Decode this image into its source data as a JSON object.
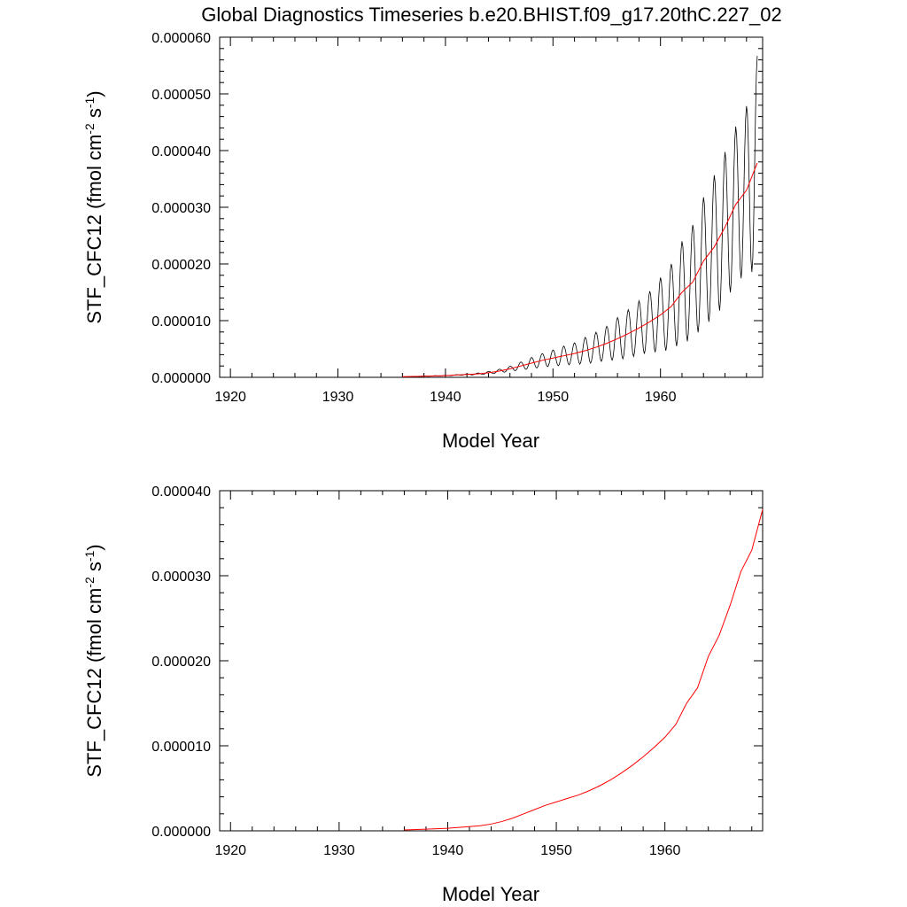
{
  "title": "Global Diagnostics Timeseries b.e20.BHIST.f09_g17.20thC.227_02",
  "chart_data": [
    {
      "type": "line",
      "xlabel": "Model Year",
      "ylabel_main": "STF_CFC12 (fmol cm",
      "ylabel_sup1": "-2",
      "ylabel_mid": " s",
      "ylabel_sup2": "-1",
      "ylabel_end": ")",
      "xlim": [
        1919,
        1969.5
      ],
      "ylim": [
        0,
        6e-05
      ],
      "x_ticks": [
        1920,
        1930,
        1940,
        1950,
        1960
      ],
      "x_tick_labels": [
        "1920",
        "1930",
        "1940",
        "1950",
        "1960"
      ],
      "y_ticks": [
        0,
        1e-05,
        2e-05,
        3e-05,
        4e-05,
        5e-05,
        6e-05
      ],
      "y_tick_labels": [
        "0.000000",
        "0.000010",
        "0.000020",
        "0.000030",
        "0.000040",
        "0.000050",
        "0.000060"
      ],
      "series": [
        {
          "kind": "monthly",
          "color": "#000000",
          "x": [
            1936,
            1938,
            1940,
            1942,
            1943,
            1944,
            1945,
            1946,
            1947,
            1948,
            1949,
            1950,
            1951,
            1952,
            1953,
            1954,
            1955,
            1956,
            1957,
            1958,
            1959,
            1960,
            1961,
            1962,
            1963,
            1964,
            1965,
            1966,
            1967,
            1968,
            1969
          ],
          "y": [
            1e-07,
            2e-07,
            3e-07,
            5e-07,
            6e-07,
            8e-07,
            1.1e-06,
            1.5e-06,
            2e-06,
            2.5e-06,
            3e-06,
            3.4e-06,
            3.8e-06,
            4.2e-06,
            4.7e-06,
            5.3e-06,
            6e-06,
            6.8e-06,
            7.7e-06,
            8.7e-06,
            9.8e-06,
            1.1e-05,
            1.25e-05,
            1.5e-05,
            1.68e-05,
            2.05e-05,
            2.3e-05,
            2.65e-05,
            3.05e-05,
            3.3e-05,
            3.78e-05
          ],
          "amplitude_fraction": [
            0.1,
            0.1,
            0.15,
            0.2,
            0.25,
            0.3,
            0.3,
            0.3,
            0.35,
            0.4,
            0.4,
            0.42,
            0.45,
            0.45,
            0.5,
            0.5,
            0.5,
            0.55,
            0.55,
            0.55,
            0.55,
            0.6,
            0.6,
            0.6,
            0.6,
            0.55,
            0.55,
            0.5,
            0.45,
            0.45,
            0.5
          ]
        },
        {
          "kind": "annual",
          "color": "#ff0000",
          "x": [
            1936,
            1938,
            1940,
            1942,
            1943,
            1944,
            1945,
            1946,
            1947,
            1948,
            1949,
            1950,
            1951,
            1952,
            1953,
            1954,
            1955,
            1956,
            1957,
            1958,
            1959,
            1960,
            1961,
            1962,
            1963,
            1964,
            1965,
            1966,
            1967,
            1968,
            1969
          ],
          "y": [
            1e-07,
            2e-07,
            3e-07,
            5e-07,
            6e-07,
            8e-07,
            1.1e-06,
            1.5e-06,
            2e-06,
            2.5e-06,
            3e-06,
            3.4e-06,
            3.8e-06,
            4.2e-06,
            4.7e-06,
            5.3e-06,
            6e-06,
            6.8e-06,
            7.7e-06,
            8.7e-06,
            9.8e-06,
            1.1e-05,
            1.25e-05,
            1.5e-05,
            1.68e-05,
            2.05e-05,
            2.3e-05,
            2.65e-05,
            3.05e-05,
            3.3e-05,
            3.78e-05
          ]
        }
      ]
    },
    {
      "type": "line",
      "xlabel": "Model Year",
      "ylabel_main": "STF_CFC12 (fmol cm",
      "ylabel_sup1": "-2",
      "ylabel_mid": " s",
      "ylabel_sup2": "-1",
      "ylabel_end": ")",
      "xlim": [
        1919,
        1969
      ],
      "ylim": [
        0,
        4e-05
      ],
      "x_ticks": [
        1920,
        1930,
        1940,
        1950,
        1960
      ],
      "x_tick_labels": [
        "1920",
        "1930",
        "1940",
        "1950",
        "1960"
      ],
      "y_ticks": [
        0,
        1e-05,
        2e-05,
        3e-05,
        4e-05
      ],
      "y_tick_labels": [
        "0.000000",
        "0.000010",
        "0.000020",
        "0.000030",
        "0.000040"
      ],
      "series": [
        {
          "kind": "annual",
          "color": "#ff0000",
          "x": [
            1936,
            1938,
            1940,
            1942,
            1943,
            1944,
            1945,
            1946,
            1947,
            1948,
            1949,
            1950,
            1951,
            1952,
            1953,
            1954,
            1955,
            1956,
            1957,
            1958,
            1959,
            1960,
            1961,
            1962,
            1963,
            1964,
            1965,
            1966,
            1967,
            1968,
            1969
          ],
          "y": [
            1e-07,
            2e-07,
            3e-07,
            5e-07,
            6e-07,
            8e-07,
            1.1e-06,
            1.5e-06,
            2e-06,
            2.5e-06,
            3e-06,
            3.4e-06,
            3.8e-06,
            4.2e-06,
            4.7e-06,
            5.3e-06,
            6e-06,
            6.8e-06,
            7.7e-06,
            8.7e-06,
            9.8e-06,
            1.1e-05,
            1.25e-05,
            1.5e-05,
            1.68e-05,
            2.05e-05,
            2.3e-05,
            2.65e-05,
            3.05e-05,
            3.3e-05,
            3.78e-05
          ]
        }
      ]
    }
  ]
}
